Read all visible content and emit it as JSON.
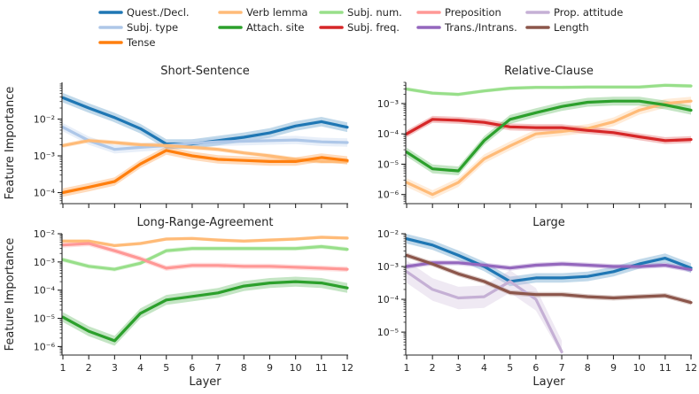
{
  "chart_data": {
    "type": "line",
    "yscale": "log",
    "xlabel": "Layer",
    "ylabel": "Feature Importance",
    "x": [
      1,
      2,
      3,
      4,
      5,
      6,
      7,
      8,
      9,
      10,
      11,
      12
    ],
    "legend": [
      {
        "key": "quest",
        "label": "Quest./Decl.",
        "color": "#1f77b4"
      },
      {
        "key": "subjtype",
        "label": "Subj. type",
        "color": "#aec7e8"
      },
      {
        "key": "tense",
        "label": "Tense",
        "color": "#ff7f0e"
      },
      {
        "key": "verblemma",
        "label": "Verb lemma",
        "color": "#ffbb78"
      },
      {
        "key": "attach",
        "label": "Attach. site",
        "color": "#2ca02c"
      },
      {
        "key": "subjnum",
        "label": "Subj. num.",
        "color": "#98df8a"
      },
      {
        "key": "subjfreq",
        "label": "Subj. freq.",
        "color": "#d62728"
      },
      {
        "key": "prep",
        "label": "Preposition",
        "color": "#ff9896"
      },
      {
        "key": "trans",
        "label": "Trans./Intrans.",
        "color": "#9467bd"
      },
      {
        "key": "propatt",
        "label": "Prop. attitude",
        "color": "#c5b0d5"
      },
      {
        "key": "length",
        "label": "Length",
        "color": "#8c564b"
      }
    ],
    "panels": [
      {
        "title": "Short-Sentence",
        "ylim": [
          5e-05,
          0.1
        ],
        "yticks": [
          {
            "v": 0.0001,
            "label": "10⁻⁴"
          },
          {
            "v": 0.001,
            "label": "10⁻³"
          },
          {
            "v": 0.01,
            "label": "10⁻²"
          }
        ],
        "show_ylabel": true,
        "show_xticklabels": false,
        "series": [
          {
            "key": "quest",
            "values": [
              0.038,
              0.02,
              0.011,
              0.0055,
              0.0021,
              0.0021,
              0.0026,
              0.0032,
              0.0042,
              0.0065,
              0.0085,
              0.006
            ],
            "band": 1.35
          },
          {
            "key": "subjtype",
            "values": [
              0.006,
              0.0026,
              0.0015,
              0.0017,
              0.0019,
              0.0022,
              0.0024,
              0.0025,
              0.0026,
              0.0027,
              0.0024,
              0.0023
            ],
            "band": 1.3
          },
          {
            "key": "verblemma",
            "values": [
              0.0019,
              0.0026,
              0.0023,
              0.002,
              0.0019,
              0.0017,
              0.0015,
              0.0012,
              0.001,
              0.0008,
              0.0007,
              0.0007
            ],
            "band": 1.15
          },
          {
            "key": "tense",
            "values": [
              0.0001,
              0.00014,
              0.0002,
              0.0006,
              0.0014,
              0.001,
              0.0008,
              0.00075,
              0.0007,
              0.0007,
              0.0009,
              0.00075
            ],
            "band": 1.3
          }
        ]
      },
      {
        "title": "Relative-Clause",
        "ylim": [
          5e-07,
          0.005
        ],
        "yticks": [
          {
            "v": 1e-06,
            "label": "10⁻⁶"
          },
          {
            "v": 1e-05,
            "label": "10⁻⁵"
          },
          {
            "v": 0.0001,
            "label": "10⁻⁴"
          },
          {
            "v": 0.001,
            "label": "10⁻³"
          }
        ],
        "show_ylabel": false,
        "show_xticklabels": false,
        "series": [
          {
            "key": "subjnum",
            "values": [
              0.003,
              0.0022,
              0.002,
              0.0026,
              0.0032,
              0.0034,
              0.0034,
              0.0035,
              0.0035,
              0.0035,
              0.004,
              0.0038
            ],
            "band": 1.15
          },
          {
            "key": "verblemma",
            "values": [
              2.5e-06,
              1e-06,
              2.5e-06,
              1.5e-05,
              4e-05,
              0.0001,
              0.00012,
              0.00015,
              0.00025,
              0.0006,
              0.001,
              0.0012
            ],
            "band": 1.4
          },
          {
            "key": "subjfreq",
            "values": [
              0.0001,
              0.0003,
              0.00028,
              0.00024,
              0.00017,
              0.00016,
              0.00016,
              0.00013,
              0.00011,
              8e-05,
              6e-05,
              6.5e-05
            ],
            "band": 1.3
          },
          {
            "key": "attach",
            "values": [
              2.5e-05,
              7e-06,
              6e-06,
              6e-05,
              0.0003,
              0.0005,
              0.0008,
              0.0011,
              0.0012,
              0.0012,
              0.0009,
              0.0006
            ],
            "band": 1.4
          }
        ]
      },
      {
        "title": "Long-Range-Agreement",
        "ylim": [
          5e-07,
          0.01
        ],
        "yticks": [
          {
            "v": 1e-06,
            "label": "10⁻⁶"
          },
          {
            "v": 1e-05,
            "label": "10⁻⁵"
          },
          {
            "v": 0.0001,
            "label": "10⁻⁴"
          },
          {
            "v": 0.001,
            "label": "10⁻³"
          },
          {
            "v": 0.01,
            "label": "10⁻²"
          }
        ],
        "show_ylabel": true,
        "show_xticklabels": true,
        "series": [
          {
            "key": "verblemma",
            "values": [
              0.0055,
              0.0055,
              0.0038,
              0.0045,
              0.0065,
              0.0068,
              0.006,
              0.0055,
              0.006,
              0.0065,
              0.0075,
              0.007
            ],
            "band": 1.15
          },
          {
            "key": "subjnum",
            "values": [
              0.0012,
              0.0007,
              0.00055,
              0.0009,
              0.0025,
              0.003,
              0.003,
              0.003,
              0.003,
              0.003,
              0.0035,
              0.0028
            ],
            "band": 1.2
          },
          {
            "key": "prep",
            "values": [
              0.004,
              0.0045,
              0.0025,
              0.0013,
              0.0006,
              0.00075,
              0.00075,
              0.0007,
              0.0007,
              0.00065,
              0.0006,
              0.00055
            ],
            "band": 1.25
          },
          {
            "key": "attach",
            "values": [
              1.1e-05,
              3.5e-06,
              1.6e-06,
              1.5e-05,
              4.5e-05,
              6e-05,
              8e-05,
              0.00014,
              0.00018,
              0.0002,
              0.00018,
              0.00012
            ],
            "band": 1.5
          }
        ]
      },
      {
        "title": "Large",
        "ylim": [
          2e-06,
          0.01
        ],
        "yticks": [
          {
            "v": 1e-05,
            "label": "10⁻⁵"
          },
          {
            "v": 0.0001,
            "label": "10⁻⁴"
          },
          {
            "v": 0.001,
            "label": "10⁻³"
          },
          {
            "v": 0.01,
            "label": "10⁻²"
          }
        ],
        "show_ylabel": false,
        "show_xticklabels": true,
        "series": [
          {
            "key": "quest",
            "values": [
              0.007,
              0.0045,
              0.0022,
              0.001,
              0.00035,
              0.00045,
              0.00045,
              0.0005,
              0.0007,
              0.0012,
              0.0018,
              0.0009
            ],
            "band": 1.4
          },
          {
            "key": "propatt",
            "values": [
              0.0007,
              0.0002,
              0.00011,
              0.00012,
              0.00035,
              0.0001,
              2.5e-06,
              null,
              null,
              null,
              null,
              null
            ],
            "band": 2.2
          },
          {
            "key": "trans",
            "values": [
              0.001,
              0.0013,
              0.0013,
              0.0011,
              0.0009,
              0.0011,
              0.0012,
              0.0011,
              0.001,
              0.001,
              0.0011,
              0.0008
            ],
            "band": 1.2
          },
          {
            "key": "length",
            "values": [
              0.0022,
              0.0012,
              0.0006,
              0.00035,
              0.00016,
              0.00014,
              0.00014,
              0.00012,
              0.00011,
              0.00012,
              0.00013,
              8e-05
            ],
            "band": 1.2
          }
        ]
      }
    ]
  }
}
